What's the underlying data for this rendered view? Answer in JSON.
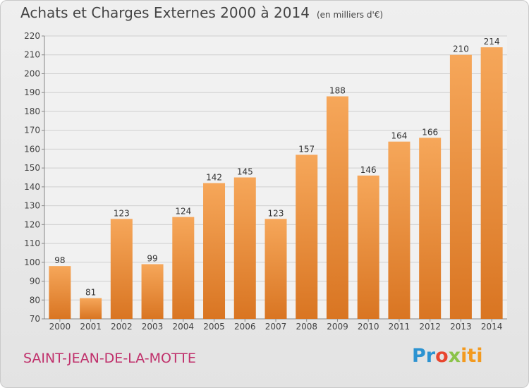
{
  "header": {
    "title": "Achats et Charges Externes 2000 à 2014",
    "unit": "(en milliers d'€)"
  },
  "footer": {
    "commune": "SAINT-JEAN-DE-LA-MOTTE",
    "logo_text": "Proxiti"
  },
  "colors": {
    "bar_light": "#f6a75a",
    "bar_dark": "#d97522",
    "commune_text": "#c0306b"
  },
  "chart_data": {
    "type": "bar",
    "title": "Achats et Charges Externes 2000 à 2014",
    "categories": [
      "2000",
      "2001",
      "2002",
      "2003",
      "2004",
      "2005",
      "2006",
      "2007",
      "2008",
      "2009",
      "2010",
      "2011",
      "2012",
      "2013",
      "2014"
    ],
    "values": [
      98,
      81,
      123,
      99,
      124,
      142,
      145,
      123,
      157,
      188,
      146,
      164,
      166,
      210,
      214
    ],
    "ylim": [
      70,
      220
    ],
    "yticks": [
      70,
      80,
      90,
      100,
      110,
      120,
      130,
      140,
      150,
      160,
      170,
      180,
      190,
      200,
      210,
      220
    ],
    "grid": true,
    "data_labels": true
  }
}
